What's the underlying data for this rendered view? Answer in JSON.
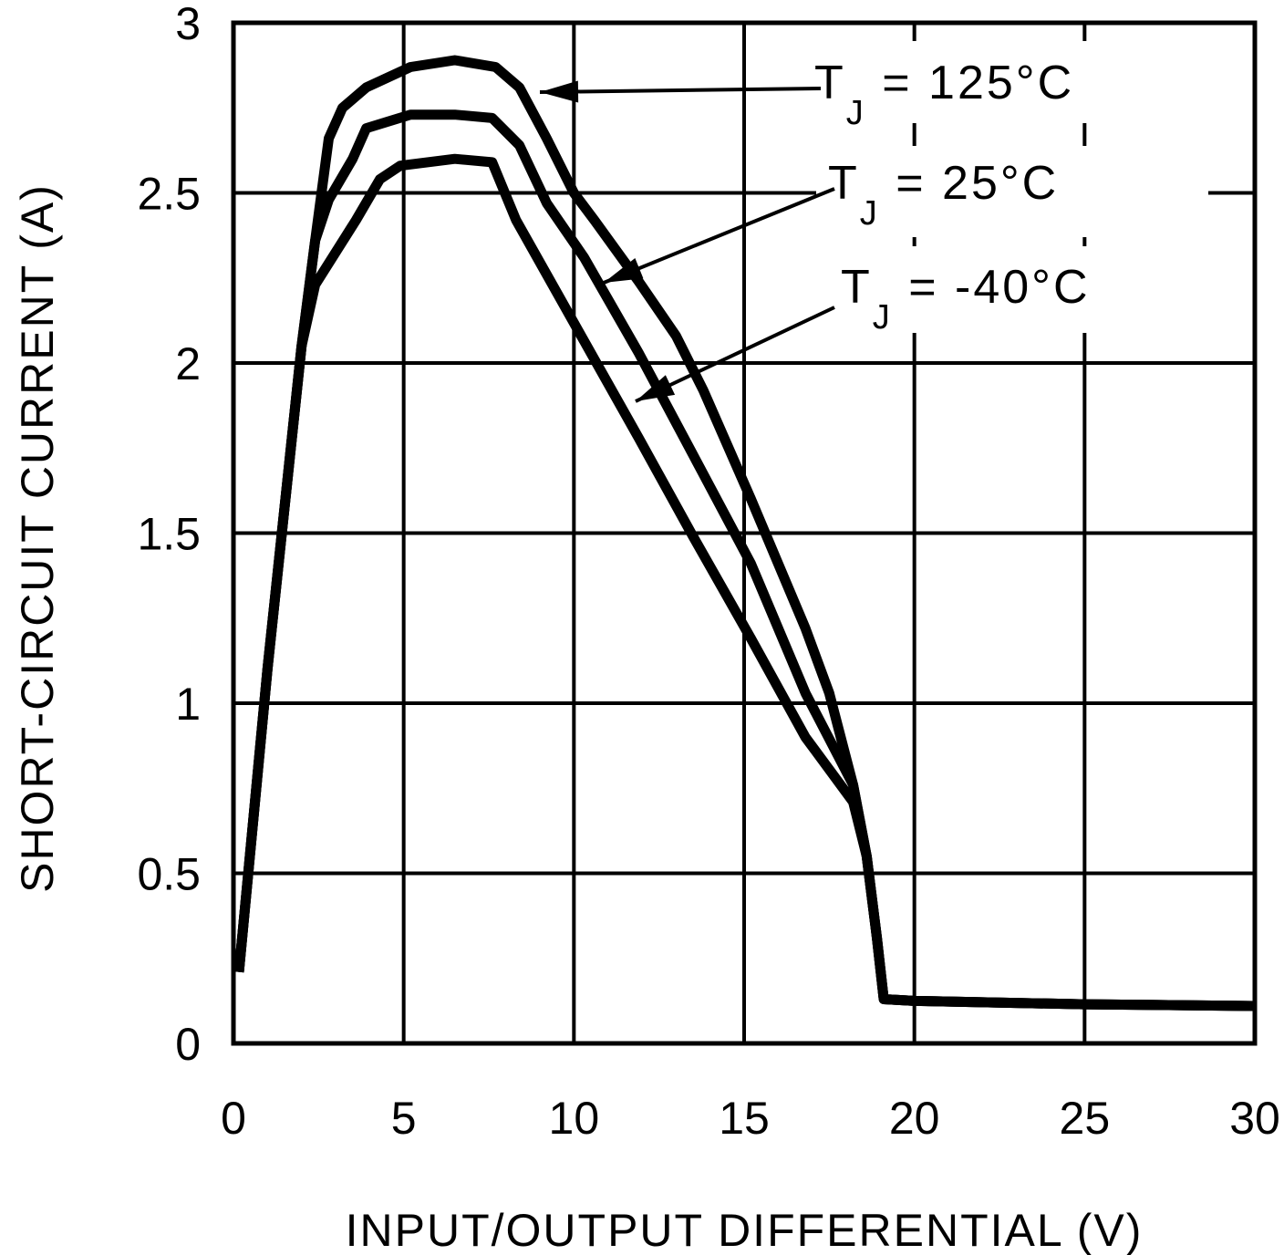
{
  "chart_data": {
    "type": "line",
    "title": "",
    "xlabel": "INPUT/OUTPUT DIFFERENTIAL (V)",
    "ylabel": "SHORT-CIRCUIT CURRENT (A)",
    "xlim": [
      0,
      30
    ],
    "ylim": [
      0,
      3
    ],
    "grid": true,
    "xticks": [
      "0",
      "5",
      "10",
      "15",
      "20",
      "25",
      "30"
    ],
    "yticks": [
      "0",
      "0.5",
      "1",
      "1.5",
      "2",
      "2.5",
      "3"
    ],
    "line_color": "#000000",
    "series": [
      {
        "name": "TJ = 125°C",
        "points": [
          [
            0.16,
            0.21
          ],
          [
            1.0,
            1.1
          ],
          [
            2.0,
            2.05
          ],
          [
            2.4,
            2.36
          ],
          [
            2.8,
            2.66
          ],
          [
            3.2,
            2.75
          ],
          [
            3.9,
            2.81
          ],
          [
            5.2,
            2.87
          ],
          [
            6.5,
            2.89
          ],
          [
            7.7,
            2.87
          ],
          [
            8.4,
            2.81
          ],
          [
            9.2,
            2.66
          ],
          [
            10.0,
            2.5
          ],
          [
            10.6,
            2.42
          ],
          [
            11.9,
            2.24
          ],
          [
            13.0,
            2.08
          ],
          [
            13.8,
            1.92
          ],
          [
            15.2,
            1.6
          ],
          [
            16.8,
            1.22
          ],
          [
            17.5,
            1.03
          ],
          [
            18.2,
            0.76
          ],
          [
            18.6,
            0.55
          ],
          [
            18.9,
            0.31
          ],
          [
            19.1,
            0.13
          ],
          [
            20,
            0.125
          ],
          [
            25,
            0.115
          ],
          [
            30,
            0.11
          ]
        ]
      },
      {
        "name": "TJ = 25°C",
        "points": [
          [
            0.16,
            0.21
          ],
          [
            1.0,
            1.1
          ],
          [
            2.0,
            2.05
          ],
          [
            2.4,
            2.36
          ],
          [
            2.8,
            2.48
          ],
          [
            3.5,
            2.6
          ],
          [
            3.9,
            2.69
          ],
          [
            5.2,
            2.73
          ],
          [
            6.5,
            2.73
          ],
          [
            7.6,
            2.72
          ],
          [
            8.4,
            2.64
          ],
          [
            9.2,
            2.47
          ],
          [
            10.3,
            2.31
          ],
          [
            11.9,
            2.03
          ],
          [
            13.5,
            1.73
          ],
          [
            15.2,
            1.41
          ],
          [
            16.8,
            1.03
          ],
          [
            18.2,
            0.76
          ],
          [
            18.6,
            0.55
          ],
          [
            18.9,
            0.31
          ],
          [
            19.1,
            0.13
          ],
          [
            20,
            0.125
          ],
          [
            25,
            0.115
          ],
          [
            30,
            0.11
          ]
        ]
      },
      {
        "name": "TJ = -40°C",
        "points": [
          [
            0.16,
            0.21
          ],
          [
            1.0,
            1.1
          ],
          [
            2.0,
            2.05
          ],
          [
            2.4,
            2.23
          ],
          [
            3.6,
            2.42
          ],
          [
            4.3,
            2.54
          ],
          [
            4.9,
            2.58
          ],
          [
            6.5,
            2.6
          ],
          [
            7.6,
            2.59
          ],
          [
            8.3,
            2.42
          ],
          [
            9.2,
            2.26
          ],
          [
            11.9,
            1.78
          ],
          [
            13.5,
            1.49
          ],
          [
            15.2,
            1.19
          ],
          [
            16.8,
            0.9
          ],
          [
            18.2,
            0.71
          ],
          [
            18.6,
            0.55
          ],
          [
            18.9,
            0.31
          ],
          [
            19.1,
            0.13
          ],
          [
            20,
            0.125
          ],
          [
            25,
            0.115
          ],
          [
            30,
            0.11
          ]
        ]
      }
    ],
    "annotations": [
      {
        "t": "T",
        "sub": "J",
        "rest": " = 125°C"
      },
      {
        "t": "T",
        "sub": "J",
        "rest": " = 25°C"
      },
      {
        "t": "T",
        "sub": "J",
        "rest": " = -40°C"
      }
    ]
  }
}
